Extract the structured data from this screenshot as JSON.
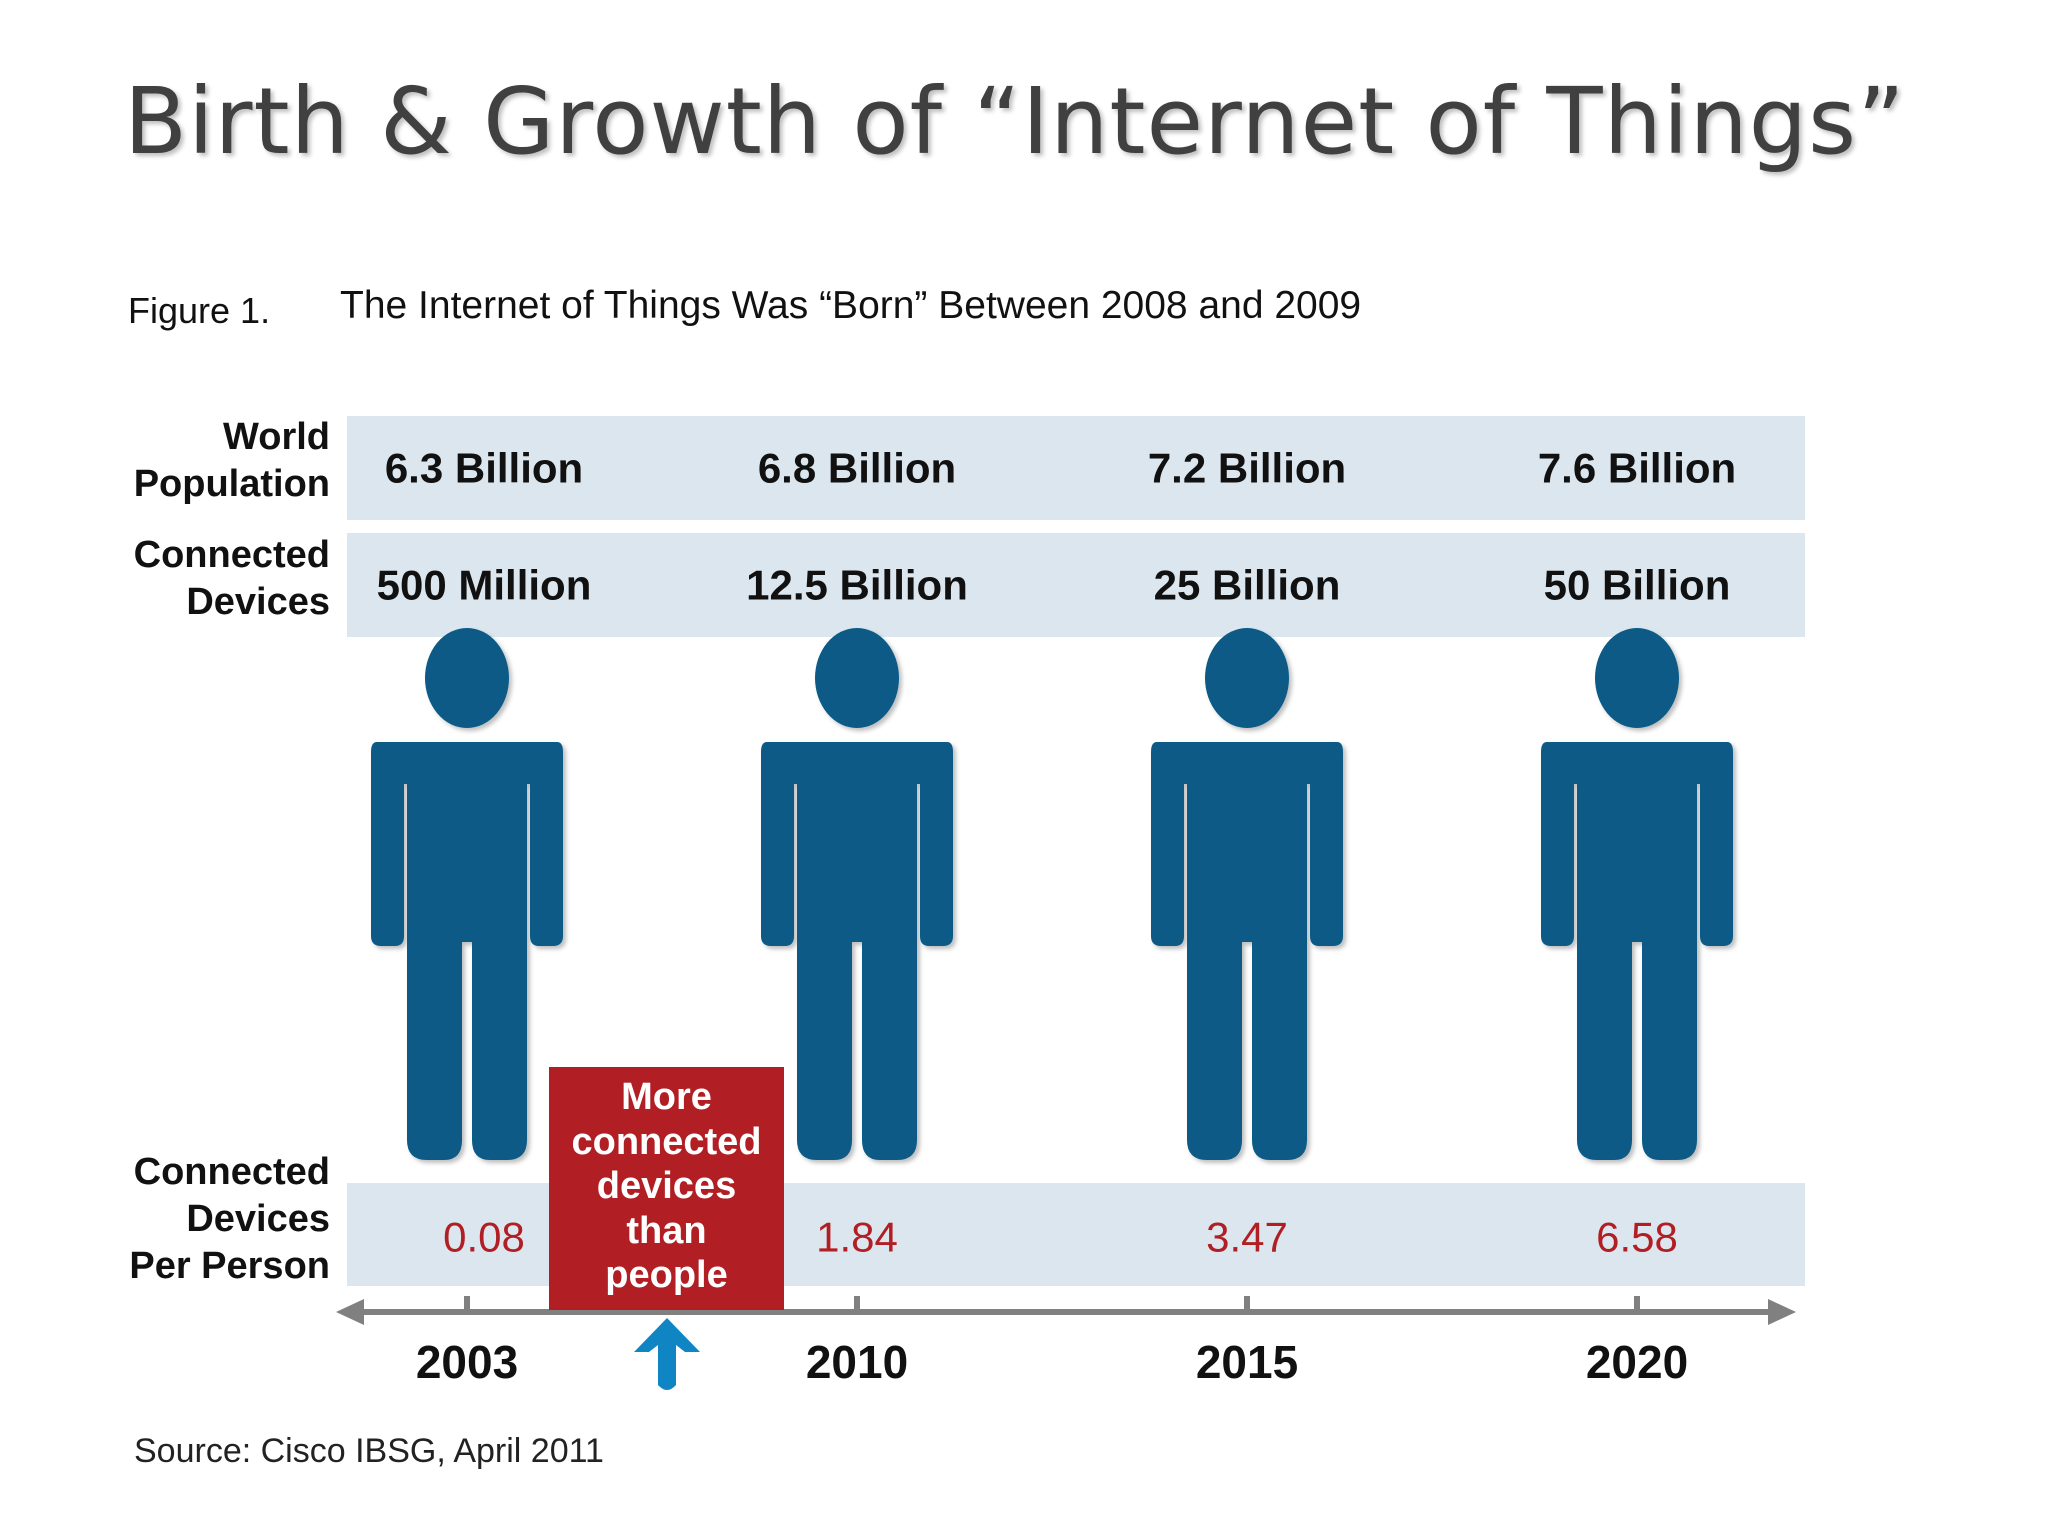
{
  "title": "Birth & Growth of “Internet of Things”",
  "figure": {
    "label": "Figure 1.",
    "caption": "The Internet of Things Was “Born” Between 2008 and 2009"
  },
  "row_labels": {
    "population": [
      "World",
      "Population"
    ],
    "devices": [
      "Connected",
      "Devices"
    ],
    "per_person": [
      "Connected",
      "Devices",
      "Per Person"
    ]
  },
  "callout": [
    "More",
    "connected",
    "devices",
    "than",
    "people"
  ],
  "source": "Source: Cisco IBSG, April 2011",
  "colors": {
    "band": "#dce6ee",
    "person": "#075a86",
    "ratio_text": "#b11f24",
    "callout_bg": "#b11f24",
    "arrow_up": "#0f85c4",
    "axis": "#808080"
  },
  "icons": {
    "person": "person-icon",
    "callout_arrow": "up-arrow-icon",
    "axis": "timeline-arrow-icon"
  },
  "chart_data": {
    "type": "table",
    "categories": [
      "2003",
      "2010",
      "2015",
      "2020"
    ],
    "series": [
      {
        "name": "World Population",
        "values": [
          6.3,
          6.8,
          7.2,
          7.6
        ],
        "labels": [
          "6.3 Billion",
          "6.8 Billion",
          "7.2 Billion",
          "7.6 Billion"
        ]
      },
      {
        "name": "Connected Devices",
        "values": [
          0.5,
          12.5,
          25,
          50
        ],
        "labels": [
          "500 Million",
          "12.5 Billion",
          "25 Billion",
          "50 Billion"
        ]
      },
      {
        "name": "Connected Devices Per Person",
        "values": [
          0.08,
          1.84,
          3.47,
          6.58
        ],
        "labels": [
          "0.08",
          "1.84",
          "3.47",
          "6.58"
        ]
      }
    ],
    "annotations": [
      {
        "text": "More connected devices than people",
        "between": [
          "2003",
          "2010"
        ]
      }
    ]
  }
}
